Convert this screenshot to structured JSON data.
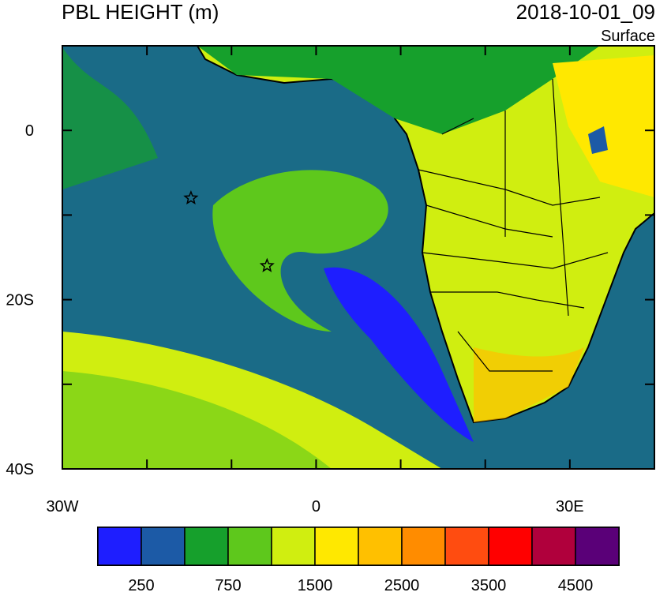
{
  "header": {
    "title": "PBL HEIGHT (m)",
    "time": "2018-10-01_09",
    "level": "Surface"
  },
  "map": {
    "lon_range": [
      -30,
      40
    ],
    "lat_range": [
      -40,
      10
    ],
    "lon_ticks": [
      -30,
      -20,
      -10,
      0,
      10,
      20,
      30,
      40
    ],
    "lon_tick_labels": [
      "30W",
      null,
      null,
      "0",
      null,
      null,
      "30E",
      null
    ],
    "lat_ticks": [
      10,
      0,
      -10,
      -20,
      -30,
      -40
    ],
    "lat_tick_labels": [
      null,
      "0",
      null,
      "20S",
      null,
      "40S"
    ],
    "markers": [
      {
        "lon": -14.8,
        "lat": -8
      },
      {
        "lon": -5.8,
        "lat": -16
      }
    ]
  },
  "colorbar": {
    "colors": [
      "#1e1eff",
      "#1c5aa6",
      "#16a02c",
      "#5ec81c",
      "#d0ee10",
      "#ffe800",
      "#ffc000",
      "#ff8c00",
      "#ff4c10",
      "#ff0000",
      "#b0003c",
      "#5a0078"
    ],
    "labels": [
      250,
      750,
      1500,
      2500,
      3500,
      4500
    ]
  }
}
